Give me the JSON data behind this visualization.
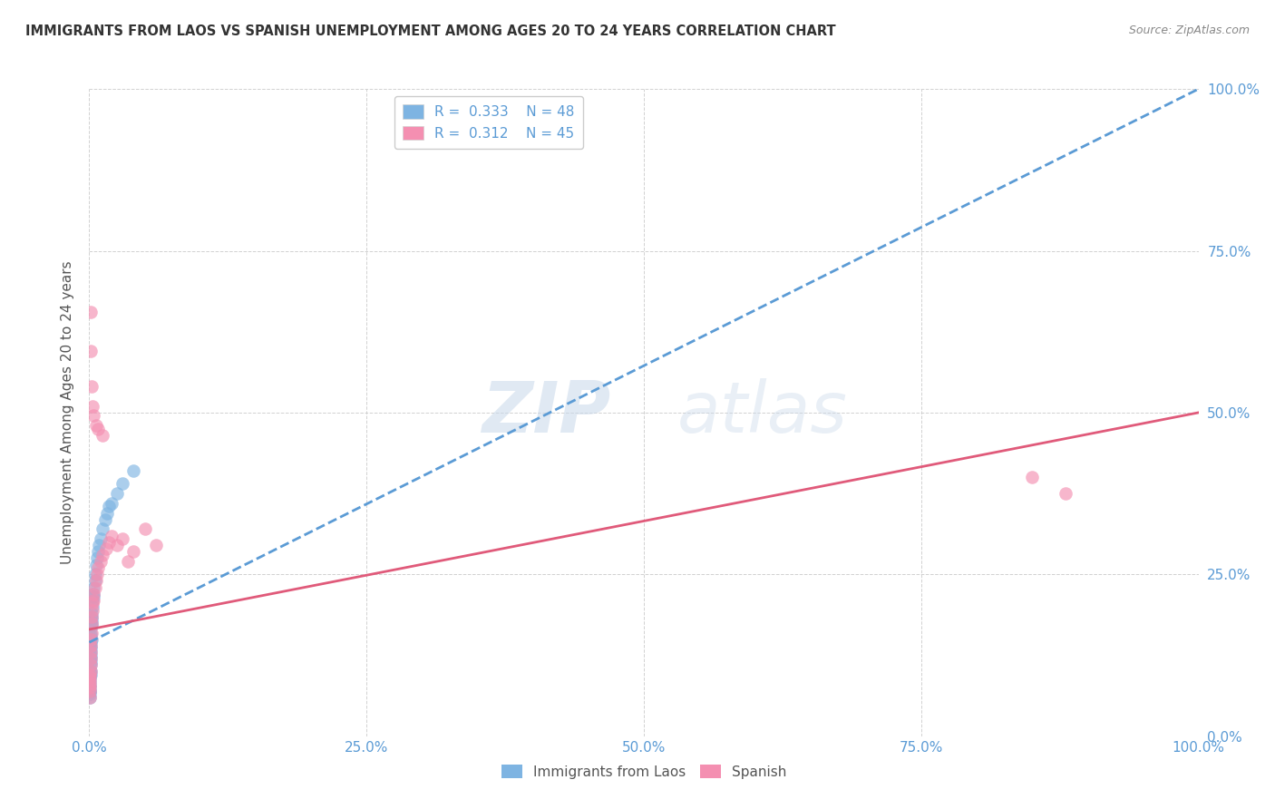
{
  "title": "IMMIGRANTS FROM LAOS VS SPANISH UNEMPLOYMENT AMONG AGES 20 TO 24 YEARS CORRELATION CHART",
  "source": "Source: ZipAtlas.com",
  "ylabel": "Unemployment Among Ages 20 to 24 years",
  "xlim": [
    0.0,
    1.0
  ],
  "ylim": [
    0.0,
    1.0
  ],
  "xticks": [
    0.0,
    0.25,
    0.5,
    0.75,
    1.0
  ],
  "yticks": [
    0.0,
    0.25,
    0.5,
    0.75,
    1.0
  ],
  "xticklabels": [
    "0.0%",
    "25.0%",
    "50.0%",
    "75.0%",
    "100.0%"
  ],
  "yticklabels": [
    "0.0%",
    "25.0%",
    "50.0%",
    "75.0%",
    "100.0%"
  ],
  "series1_color": "#7EB4E2",
  "series2_color": "#F48FB1",
  "line1_color": "#5B9BD5",
  "line2_color": "#E05A7A",
  "background_color": "#FFFFFF",
  "watermark_zip": "ZIP",
  "watermark_atlas": "atlas",
  "series1_label": "Immigrants from Laos",
  "series2_label": "Spanish",
  "blue_r": 0.333,
  "pink_r": 0.312,
  "blue_n": 48,
  "pink_n": 45,
  "blue_intercept": 0.145,
  "blue_slope": 0.855,
  "pink_intercept": 0.165,
  "pink_slope": 0.335,
  "blue_x": [
    0.0002,
    0.0003,
    0.0004,
    0.0004,
    0.0005,
    0.0005,
    0.0006,
    0.0006,
    0.0007,
    0.0008,
    0.0009,
    0.001,
    0.001,
    0.001,
    0.001,
    0.001,
    0.0012,
    0.0013,
    0.0014,
    0.0015,
    0.0016,
    0.0017,
    0.0018,
    0.002,
    0.002,
    0.0022,
    0.0023,
    0.0025,
    0.003,
    0.003,
    0.0035,
    0.004,
    0.004,
    0.005,
    0.005,
    0.006,
    0.007,
    0.008,
    0.009,
    0.01,
    0.012,
    0.014,
    0.016,
    0.018,
    0.02,
    0.025,
    0.03,
    0.04
  ],
  "blue_y": [
    0.085,
    0.075,
    0.065,
    0.095,
    0.06,
    0.09,
    0.07,
    0.1,
    0.08,
    0.07,
    0.095,
    0.1,
    0.11,
    0.12,
    0.13,
    0.14,
    0.115,
    0.125,
    0.135,
    0.145,
    0.155,
    0.16,
    0.17,
    0.15,
    0.175,
    0.18,
    0.19,
    0.185,
    0.2,
    0.21,
    0.215,
    0.22,
    0.23,
    0.24,
    0.25,
    0.265,
    0.275,
    0.285,
    0.295,
    0.305,
    0.32,
    0.335,
    0.345,
    0.355,
    0.36,
    0.375,
    0.39,
    0.41
  ],
  "pink_x": [
    0.0002,
    0.0003,
    0.0004,
    0.0005,
    0.0006,
    0.0007,
    0.0008,
    0.001,
    0.001,
    0.001,
    0.0012,
    0.0014,
    0.0016,
    0.002,
    0.002,
    0.0025,
    0.003,
    0.003,
    0.004,
    0.004,
    0.005,
    0.006,
    0.007,
    0.008,
    0.01,
    0.012,
    0.015,
    0.018,
    0.02,
    0.025,
    0.03,
    0.035,
    0.04,
    0.05,
    0.06,
    0.001,
    0.0015,
    0.002,
    0.003,
    0.004,
    0.006,
    0.008,
    0.012,
    0.85,
    0.88
  ],
  "pink_y": [
    0.07,
    0.06,
    0.08,
    0.09,
    0.075,
    0.085,
    0.095,
    0.1,
    0.12,
    0.14,
    0.11,
    0.13,
    0.15,
    0.16,
    0.175,
    0.185,
    0.195,
    0.205,
    0.21,
    0.22,
    0.23,
    0.24,
    0.25,
    0.26,
    0.27,
    0.28,
    0.29,
    0.3,
    0.31,
    0.295,
    0.305,
    0.27,
    0.285,
    0.32,
    0.295,
    0.655,
    0.595,
    0.54,
    0.51,
    0.495,
    0.48,
    0.475,
    0.465,
    0.4,
    0.375
  ]
}
